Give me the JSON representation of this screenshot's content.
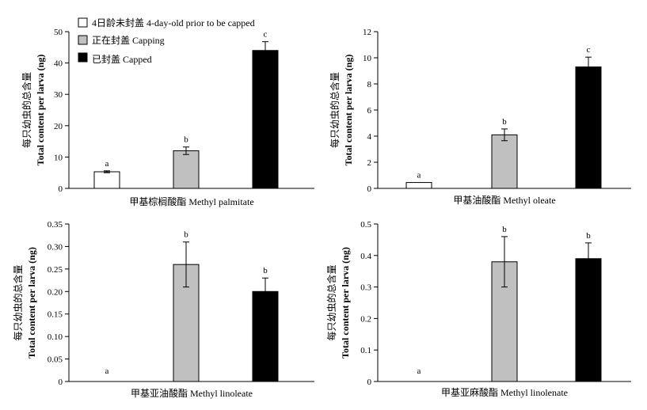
{
  "legend": [
    {
      "label": "4日龄未封盖 4-day-old prior to be capped",
      "color": "#ffffff"
    },
    {
      "label": "正在封盖 Capping",
      "color": "#c0c0c0"
    },
    {
      "label": "已封盖 Capped",
      "color": "#000000"
    }
  ],
  "chart_data": [
    {
      "type": "bar",
      "xlabel": "甲基棕榈酸酯 Methyl palmitate",
      "ylabel_cn": "每只幼虫的总含量",
      "ylabel_en": "Total content per larva (ng)",
      "ylim": [
        0,
        50
      ],
      "yticks": [
        "0",
        "10",
        "20",
        "30",
        "40",
        "50"
      ],
      "values": [
        5.3,
        12,
        44
      ],
      "errors": [
        0.3,
        1.2,
        2.8
      ],
      "letters": [
        "a",
        "b",
        "c"
      ]
    },
    {
      "type": "bar",
      "xlabel": "甲基油酸酯 Methyl oleate",
      "ylabel_cn": "每只幼虫的总含量",
      "ylabel_en": "Total content per larva (ng)",
      "ylim": [
        0,
        12
      ],
      "yticks": [
        "0",
        "2",
        "4",
        "6",
        "8",
        "10",
        "12"
      ],
      "values": [
        0.45,
        4.1,
        9.3
      ],
      "errors": [
        0,
        0.45,
        0.75
      ],
      "letters": [
        "a",
        "b",
        "c"
      ]
    },
    {
      "type": "bar",
      "xlabel": "甲基亚油酸酯 Methyl linoleate",
      "ylabel_cn": "每只幼虫的总含量",
      "ylabel_en": "Total content per larva (ng)",
      "ylim": [
        0,
        0.35
      ],
      "yticks": [
        "0",
        "0.05",
        "0.10",
        "0.15",
        "0.20",
        "0.25",
        "0.30",
        "0.35"
      ],
      "values": [
        0,
        0.26,
        0.2
      ],
      "errors": [
        0,
        0.05,
        0.03
      ],
      "letters": [
        "a",
        "b",
        "b"
      ]
    },
    {
      "type": "bar",
      "xlabel": "甲基亚麻酸酯 Methyl linolenate",
      "ylabel_cn": "每只幼虫的总含量",
      "ylabel_en": "Total content per larva (ng)",
      "ylim": [
        0,
        0.5
      ],
      "yticks": [
        "0",
        "0.1",
        "0.2",
        "0.3",
        "0.4",
        "0.5"
      ],
      "values": [
        0,
        0.38,
        0.39
      ],
      "errors": [
        0,
        0.08,
        0.05
      ],
      "letters": [
        "a",
        "b",
        "b"
      ]
    }
  ]
}
